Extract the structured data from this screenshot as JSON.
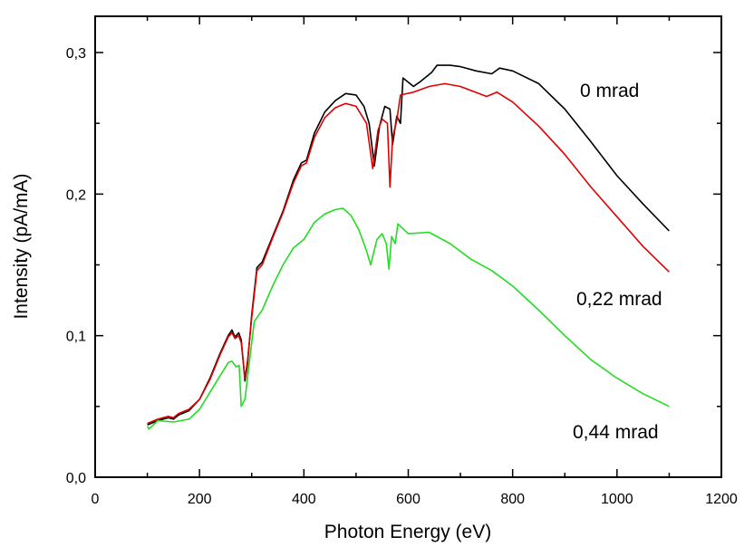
{
  "chart_data": {
    "type": "line",
    "title": "",
    "xlabel": "Photon Energy (eV)",
    "ylabel": "Intensity (pA/mA)",
    "xlim": [
      0,
      1200
    ],
    "ylim": [
      0,
      0.3
    ],
    "x_ticks": [
      0,
      200,
      400,
      600,
      800,
      1000,
      1200
    ],
    "x_tick_labels": [
      "0",
      "200",
      "400",
      "600",
      "800",
      "1000",
      "1200"
    ],
    "y_ticks": [
      0,
      0.1,
      0.2,
      0.3
    ],
    "y_tick_labels": [
      "0,0",
      "0,1",
      "0,2",
      "0,3"
    ],
    "grid": false,
    "legend": "none (inline labels)",
    "series": [
      {
        "name": "0 mrad",
        "color": "#000000",
        "x": [
          100,
          120,
          140,
          150,
          160,
          180,
          200,
          220,
          240,
          255,
          262,
          268,
          275,
          280,
          287,
          292,
          300,
          310,
          320,
          340,
          360,
          380,
          395,
          405,
          420,
          440,
          460,
          480,
          500,
          515,
          525,
          535,
          545,
          555,
          565,
          570,
          578,
          585,
          590,
          610,
          625,
          645,
          655,
          680,
          700,
          730,
          760,
          775,
          800,
          850,
          900,
          950,
          1000,
          1050,
          1100
        ],
        "y": [
          0.037,
          0.04,
          0.042,
          0.041,
          0.044,
          0.047,
          0.055,
          0.07,
          0.088,
          0.1,
          0.104,
          0.099,
          0.102,
          0.097,
          0.068,
          0.08,
          0.115,
          0.148,
          0.152,
          0.17,
          0.188,
          0.21,
          0.222,
          0.224,
          0.243,
          0.258,
          0.266,
          0.271,
          0.27,
          0.262,
          0.25,
          0.22,
          0.248,
          0.262,
          0.26,
          0.235,
          0.255,
          0.25,
          0.282,
          0.276,
          0.28,
          0.286,
          0.291,
          0.291,
          0.29,
          0.287,
          0.285,
          0.289,
          0.287,
          0.278,
          0.26,
          0.237,
          0.213,
          0.193,
          0.174
        ]
      },
      {
        "name": "0,22 mrad",
        "color": "#e00000",
        "x": [
          100,
          120,
          140,
          150,
          160,
          180,
          200,
          220,
          240,
          255,
          262,
          268,
          275,
          280,
          287,
          292,
          300,
          310,
          320,
          340,
          360,
          380,
          395,
          405,
          420,
          440,
          460,
          480,
          500,
          520,
          532,
          542,
          550,
          560,
          565,
          570,
          578,
          585,
          610,
          640,
          670,
          700,
          750,
          770,
          800,
          850,
          900,
          950,
          1000,
          1050,
          1100
        ],
        "y": [
          0.038,
          0.041,
          0.043,
          0.042,
          0.045,
          0.048,
          0.055,
          0.069,
          0.087,
          0.099,
          0.102,
          0.098,
          0.1,
          0.095,
          0.07,
          0.082,
          0.113,
          0.146,
          0.15,
          0.169,
          0.187,
          0.208,
          0.22,
          0.222,
          0.24,
          0.254,
          0.261,
          0.264,
          0.262,
          0.25,
          0.218,
          0.245,
          0.253,
          0.25,
          0.205,
          0.24,
          0.252,
          0.27,
          0.272,
          0.276,
          0.278,
          0.276,
          0.269,
          0.272,
          0.265,
          0.248,
          0.228,
          0.205,
          0.184,
          0.163,
          0.145
        ]
      },
      {
        "name": "0,44 mrad",
        "color": "#22dd22",
        "x": [
          100,
          103,
          120,
          150,
          180,
          200,
          220,
          240,
          255,
          262,
          270,
          276,
          280,
          287,
          295,
          305,
          320,
          340,
          360,
          380,
          400,
          420,
          440,
          460,
          475,
          490,
          505,
          520,
          528,
          540,
          550,
          558,
          563,
          568,
          575,
          580,
          600,
          640,
          680,
          720,
          760,
          800,
          850,
          900,
          950,
          1000,
          1050,
          1100
        ],
        "y": [
          0.036,
          0.034,
          0.04,
          0.039,
          0.041,
          0.048,
          0.06,
          0.072,
          0.081,
          0.082,
          0.078,
          0.079,
          0.05,
          0.055,
          0.08,
          0.11,
          0.118,
          0.135,
          0.15,
          0.162,
          0.168,
          0.18,
          0.186,
          0.189,
          0.19,
          0.185,
          0.175,
          0.16,
          0.15,
          0.168,
          0.172,
          0.165,
          0.147,
          0.17,
          0.165,
          0.179,
          0.172,
          0.173,
          0.165,
          0.154,
          0.146,
          0.135,
          0.118,
          0.1,
          0.083,
          0.07,
          0.059,
          0.05
        ]
      }
    ],
    "annotations": [
      "0 mrad",
      "0,22 mrad",
      "0,44 mrad"
    ]
  }
}
